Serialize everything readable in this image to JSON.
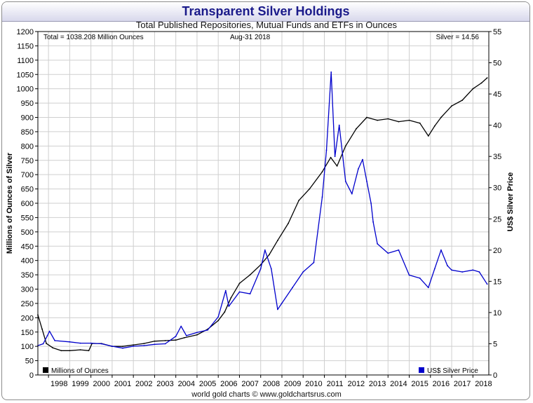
{
  "chart_data": {
    "type": "line",
    "title": "Transparent Silver Holdings",
    "subtitle": "Total Published Repositories, Mutual Funds and ETFs in Ounces",
    "credit": "world gold charts © www.goldchartsrus.com",
    "annotations": {
      "total": "Total = 1038.208 Million Ounces",
      "date": "Aug-31  2018",
      "silver": "Silver = 14.56"
    },
    "y_left_label": "Millions of Ounces of Silver",
    "y_right_label": "US$ Silver Price",
    "y_left_lim": [
      0,
      1200
    ],
    "y_right_lim": [
      0,
      55
    ],
    "y_left_ticks": [
      0,
      50,
      100,
      150,
      200,
      250,
      300,
      350,
      400,
      450,
      500,
      550,
      600,
      650,
      700,
      750,
      800,
      850,
      900,
      950,
      1000,
      1050,
      1100,
      1150,
      1200
    ],
    "y_right_ticks": [
      0,
      5,
      10,
      15,
      20,
      25,
      30,
      35,
      40,
      45,
      50,
      55
    ],
    "x_lim": [
      1997.5,
      2018.75
    ],
    "x_ticks": [
      "1998",
      "1999",
      "2000",
      "2001",
      "2002",
      "2003",
      "2004",
      "2005",
      "2006",
      "2007",
      "2008",
      "2009",
      "2010",
      "2011",
      "2012",
      "2013",
      "2014",
      "2015",
      "2016",
      "2017",
      "2018"
    ],
    "grid": true,
    "legend": [
      {
        "name": "Millions of Ounces",
        "color": "#000000",
        "position": "bottom-left"
      },
      {
        "name": "US$ Silver Price",
        "color": "#0000cc",
        "position": "bottom-right"
      }
    ],
    "series": [
      {
        "name": "Millions of Ounces",
        "axis": "left",
        "color": "#000000",
        "x": [
          1997.5,
          1997.7,
          1997.9,
          1998.2,
          1998.6,
          1999.0,
          1999.5,
          1999.9,
          2000.05,
          2000.5,
          2001.0,
          2001.5,
          2002.0,
          2002.5,
          2003.0,
          2003.5,
          2004.0,
          2004.4,
          2005.0,
          2005.5,
          2006.0,
          2006.3,
          2006.6,
          2007.0,
          2007.5,
          2008.0,
          2008.4,
          2008.8,
          2009.3,
          2009.8,
          2010.3,
          2010.9,
          2011.3,
          2011.6,
          2012.0,
          2012.5,
          2013.0,
          2013.5,
          2014.0,
          2014.5,
          2015.0,
          2015.5,
          2015.9,
          2016.2,
          2016.5,
          2017.0,
          2017.5,
          2018.0,
          2018.4,
          2018.67
        ],
        "values": [
          210,
          160,
          110,
          95,
          85,
          85,
          88,
          85,
          110,
          110,
          100,
          100,
          105,
          110,
          118,
          120,
          122,
          130,
          140,
          160,
          190,
          220,
          270,
          320,
          350,
          385,
          420,
          470,
          530,
          610,
          650,
          710,
          760,
          730,
          800,
          860,
          900,
          890,
          895,
          885,
          890,
          880,
          835,
          870,
          900,
          940,
          960,
          1000,
          1020,
          1038
        ]
      },
      {
        "name": "US$ Silver Price",
        "axis": "right",
        "color": "#0000cc",
        "x": [
          1997.5,
          1997.75,
          1997.95,
          1998.05,
          1998.3,
          1999.0,
          1999.5,
          2000.0,
          2000.5,
          2001.0,
          2001.5,
          2002.0,
          2002.5,
          2003.0,
          2003.5,
          2004.0,
          2004.25,
          2004.5,
          2005.0,
          2005.5,
          2006.0,
          2006.35,
          2006.5,
          2007.0,
          2007.5,
          2008.0,
          2008.2,
          2008.5,
          2008.8,
          2009.0,
          2009.5,
          2010.0,
          2010.5,
          2010.9,
          2011.1,
          2011.32,
          2011.5,
          2011.7,
          2012.0,
          2012.3,
          2012.6,
          2012.8,
          2013.0,
          2013.2,
          2013.3,
          2013.5,
          2014.0,
          2014.5,
          2015.0,
          2015.5,
          2015.9,
          2016.2,
          2016.5,
          2016.8,
          2017.0,
          2017.5,
          2018.0,
          2018.3,
          2018.67
        ],
        "values": [
          4.7,
          5.0,
          6.3,
          7.0,
          5.5,
          5.3,
          5.1,
          5.1,
          5.0,
          4.6,
          4.3,
          4.6,
          4.7,
          4.9,
          5.0,
          6.2,
          7.8,
          6.3,
          6.8,
          7.2,
          9.3,
          13.5,
          11.0,
          13.3,
          13.0,
          17.0,
          20.0,
          17.0,
          10.5,
          11.5,
          14.0,
          16.5,
          18.0,
          28.5,
          36.0,
          48.5,
          35.0,
          40.0,
          31.0,
          29.0,
          33.0,
          34.5,
          31.0,
          27.5,
          24.5,
          21.0,
          19.5,
          20.0,
          16.0,
          15.5,
          14.0,
          17.0,
          20.0,
          17.5,
          16.8,
          16.5,
          16.8,
          16.5,
          14.56
        ]
      }
    ]
  }
}
